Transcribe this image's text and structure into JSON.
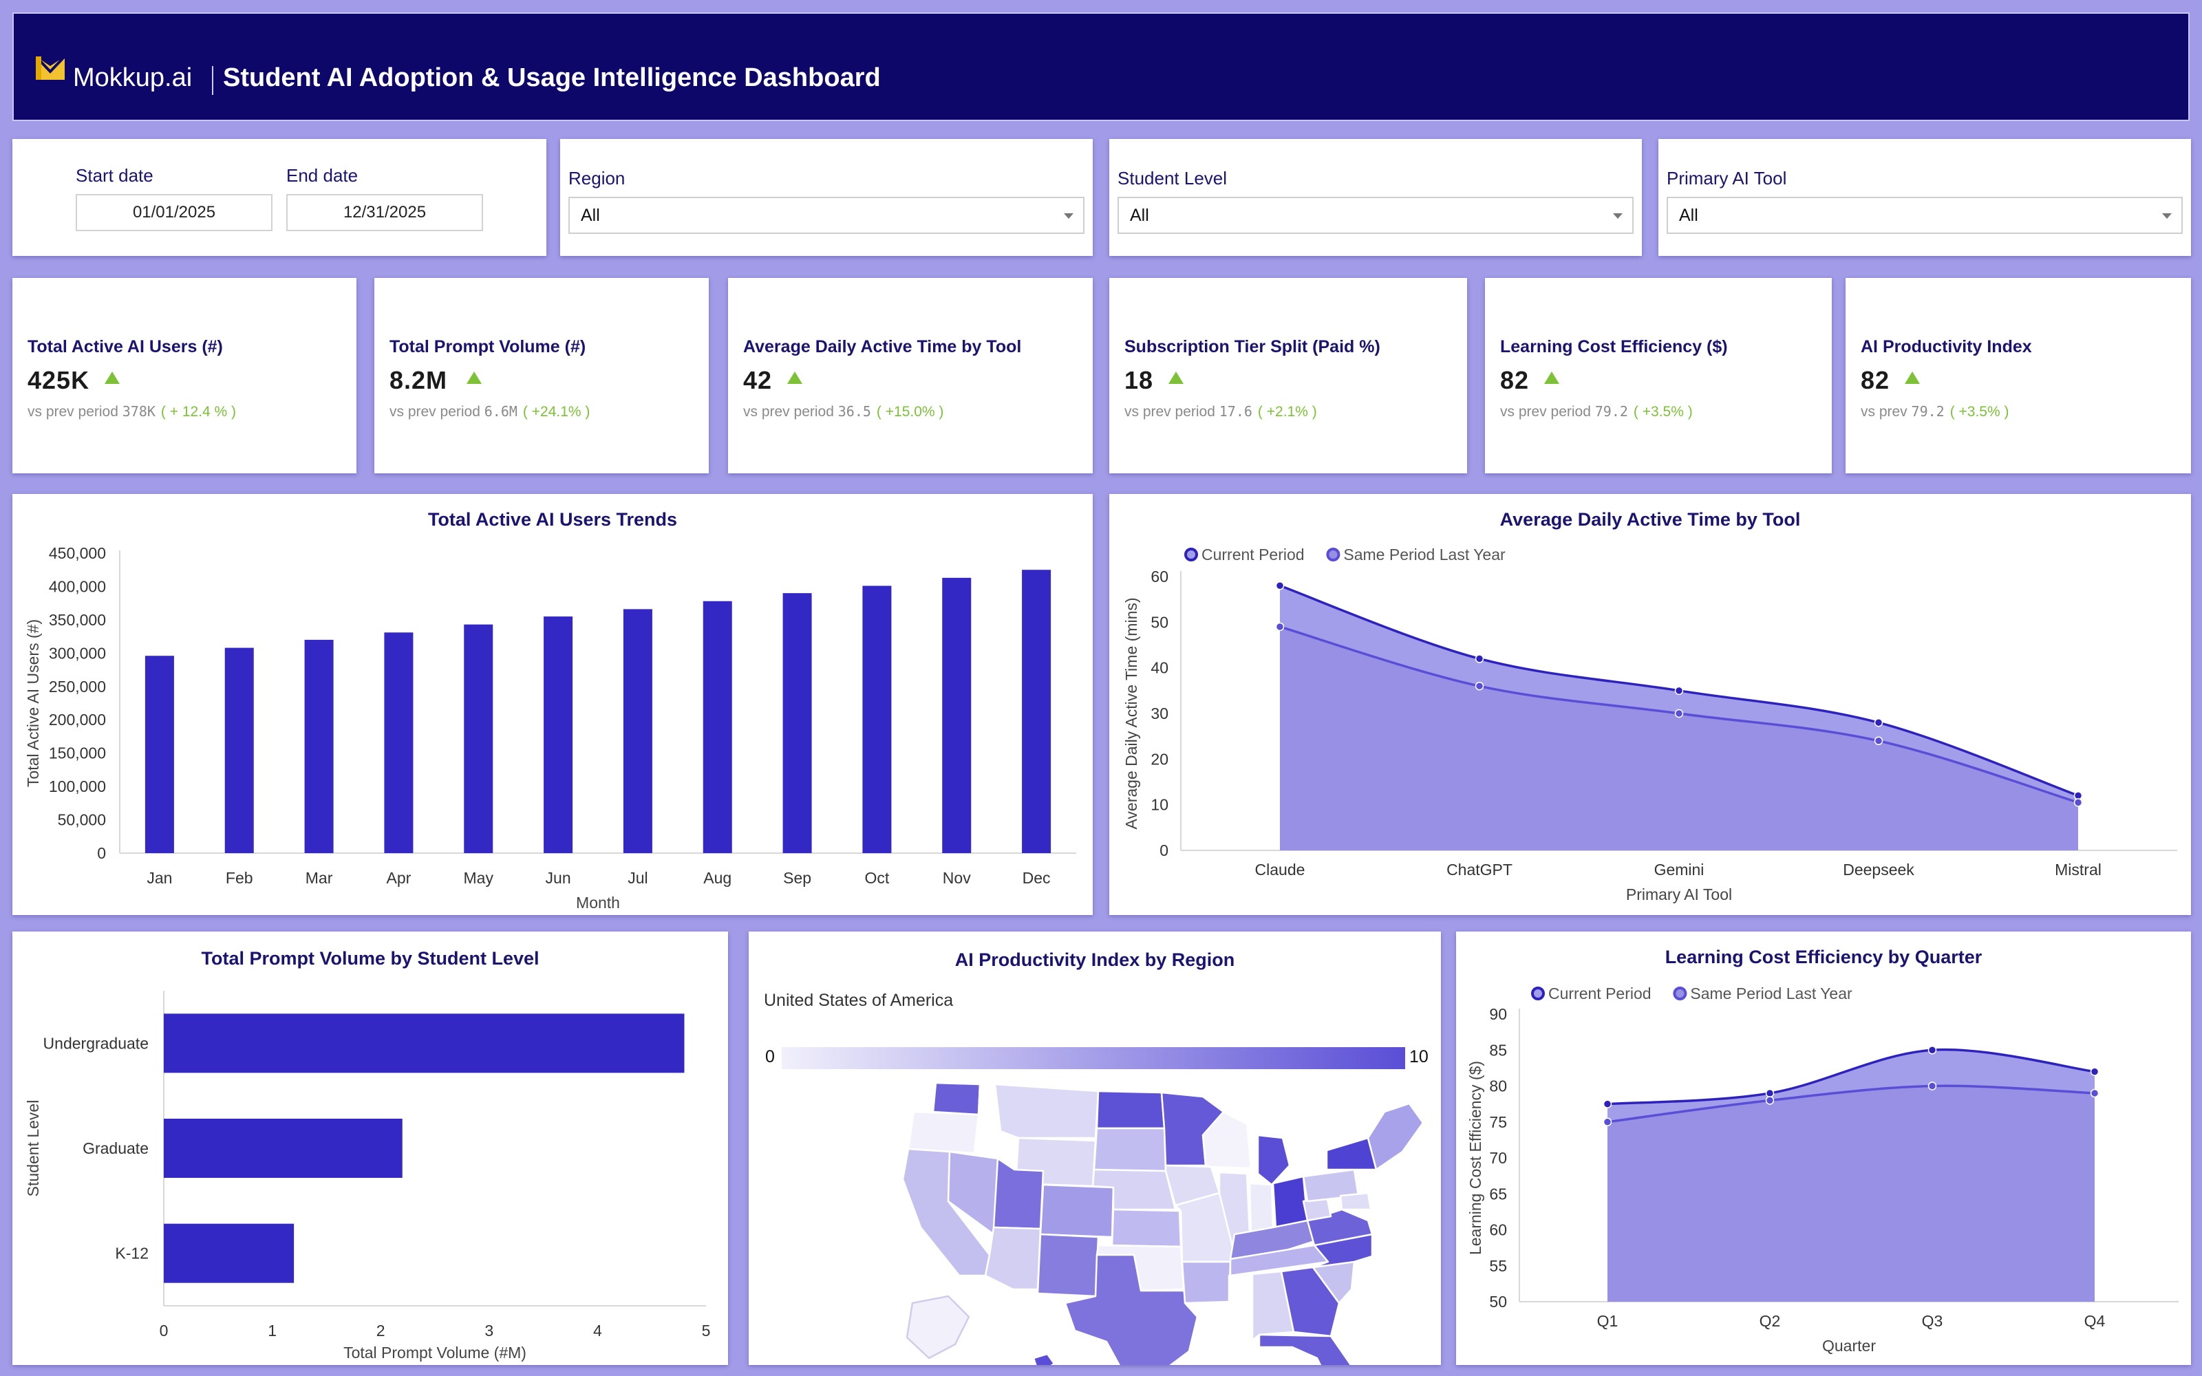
{
  "header": {
    "brand": "Mokkup.ai",
    "title": "Student AI Adoption & Usage Intelligence Dashboard"
  },
  "filters": {
    "start_label": "Start date",
    "start_value": "01/01/2025",
    "end_label": "End date",
    "end_value": "12/31/2025",
    "region_label": "Region",
    "region_value": "All",
    "level_label": "Student Level",
    "level_value": "All",
    "tool_label": "Primary AI Tool",
    "tool_value": "All"
  },
  "kpis": [
    {
      "label": "Total Active AI Users (#)",
      "value": "425K",
      "sub": "vs prev period",
      "prev": "378K",
      "change": "( + 12.4 % )"
    },
    {
      "label": "Total Prompt Volume (#)",
      "value": "8.2M",
      "sub": "vs prev period",
      "prev": "6.6M",
      "change": "( +24.1% )"
    },
    {
      "label": "Average Daily Active Time by Tool",
      "value": "42",
      "sub": "vs prev period",
      "prev": "36.5",
      "change": "( +15.0% )"
    },
    {
      "label": "Subscription Tier Split (Paid %)",
      "value": "18",
      "sub": "vs prev period",
      "prev": "17.6",
      "change": "( +2.1% )"
    },
    {
      "label": "Learning Cost Efficiency ($)",
      "value": "82",
      "sub": "vs prev period",
      "prev": "79.2",
      "change": "( +3.5% )"
    },
    {
      "label": "AI Productivity Index",
      "value": "82",
      "sub": "vs prev",
      "prev": "79.2",
      "change": "( +3.5% )"
    }
  ],
  "colors": {
    "primary": "#3428c4",
    "area_light": "#a39ee9",
    "area_dark": "#9790e4",
    "header_bg": "#0d076a",
    "page_bg": "#a29ce8",
    "up_green": "#7cc136"
  },
  "charts": {
    "users_trend": {
      "title": "Total Active AI Users Trends",
      "type": "bar",
      "xlabel": "Month",
      "ylabel": "Total Active AI Users (#)",
      "categories": [
        "Jan",
        "Feb",
        "Mar",
        "Apr",
        "May",
        "Jun",
        "Jul",
        "Aug",
        "Sep",
        "Oct",
        "Nov",
        "Dec"
      ],
      "values": [
        296000,
        308000,
        320000,
        331000,
        343000,
        355000,
        366000,
        378000,
        390000,
        401000,
        413000,
        425000
      ],
      "ylim": [
        0,
        450000
      ],
      "yticks": [
        "0",
        "50,000",
        "100,000",
        "150,000",
        "200,000",
        "250,000",
        "300,000",
        "350,000",
        "400,000",
        "450,000"
      ]
    },
    "daily_time": {
      "title": "Average Daily Active Time by Tool",
      "type": "area",
      "xlabel": "Primary AI Tool",
      "ylabel": "Average Daily Active Time (mins)",
      "categories": [
        "Claude",
        "ChatGPT",
        "Gemini",
        "Deepseek",
        "Mistral"
      ],
      "series": [
        {
          "name": "Current Period",
          "values": [
            58,
            42,
            35,
            28,
            12
          ]
        },
        {
          "name": "Same Period Last Year",
          "values": [
            49,
            36,
            30,
            24,
            10.5
          ]
        }
      ],
      "ylim": [
        0,
        60
      ],
      "yticks": [
        "0",
        "10",
        "20",
        "30",
        "40",
        "50",
        "60"
      ]
    },
    "prompt_volume": {
      "title": "Total Prompt Volume by Student Level",
      "type": "bar",
      "xlabel": "Total Prompt Volume (#M)",
      "ylabel": "Student Level",
      "categories": [
        "Undergraduate",
        "Graduate",
        "K-12"
      ],
      "values": [
        4.8,
        2.2,
        1.2
      ],
      "xlim": [
        0,
        5
      ],
      "xticks": [
        "0",
        "1",
        "2",
        "3",
        "4",
        "5"
      ]
    },
    "productivity_map": {
      "title": "AI Productivity Index by Region",
      "country": "United States of America",
      "scale_min": "0",
      "scale_max": "10"
    },
    "cost_efficiency": {
      "title": "Learning Cost Efficiency by Quarter",
      "type": "area",
      "xlabel": "Quarter",
      "ylabel": "Learning Cost Efficiency ($)",
      "categories": [
        "Q1",
        "Q2",
        "Q3",
        "Q4"
      ],
      "series": [
        {
          "name": "Current Period",
          "values": [
            77.5,
            79,
            85,
            82
          ]
        },
        {
          "name": "Same Period Last Year",
          "values": [
            75,
            78,
            80,
            79
          ]
        }
      ],
      "ylim": [
        50,
        90
      ],
      "yticks": [
        "50",
        "55",
        "60",
        "65",
        "70",
        "75",
        "80",
        "85",
        "90"
      ]
    }
  },
  "chart_data": [
    {
      "type": "bar",
      "title": "Total Active AI Users Trends",
      "xlabel": "Month",
      "ylabel": "Total Active AI Users (#)",
      "categories": [
        "Jan",
        "Feb",
        "Mar",
        "Apr",
        "May",
        "Jun",
        "Jul",
        "Aug",
        "Sep",
        "Oct",
        "Nov",
        "Dec"
      ],
      "values": [
        296000,
        308000,
        320000,
        331000,
        343000,
        355000,
        366000,
        378000,
        390000,
        401000,
        413000,
        425000
      ],
      "ylim": [
        0,
        450000
      ]
    },
    {
      "type": "area",
      "title": "Average Daily Active Time by Tool",
      "xlabel": "Primary AI Tool",
      "ylabel": "Average Daily Active Time (mins)",
      "categories": [
        "Claude",
        "ChatGPT",
        "Gemini",
        "Deepseek",
        "Mistral"
      ],
      "series": [
        {
          "name": "Current Period",
          "values": [
            58,
            42,
            35,
            28,
            12
          ]
        },
        {
          "name": "Same Period Last Year",
          "values": [
            49,
            36,
            30,
            24,
            10.5
          ]
        }
      ],
      "ylim": [
        0,
        60
      ]
    },
    {
      "type": "bar",
      "title": "Total Prompt Volume by Student Level",
      "xlabel": "Total Prompt Volume (#M)",
      "ylabel": "Student Level",
      "categories": [
        "Undergraduate",
        "Graduate",
        "K-12"
      ],
      "values": [
        4.8,
        2.2,
        1.2
      ],
      "xlim": [
        0,
        5
      ]
    },
    {
      "type": "area",
      "title": "Learning Cost Efficiency by Quarter",
      "xlabel": "Quarter",
      "ylabel": "Learning Cost Efficiency ($)",
      "categories": [
        "Q1",
        "Q2",
        "Q3",
        "Q4"
      ],
      "series": [
        {
          "name": "Current Period",
          "values": [
            77.5,
            79,
            85,
            82
          ]
        },
        {
          "name": "Same Period Last Year",
          "values": [
            75,
            78,
            80,
            79
          ]
        }
      ],
      "ylim": [
        50,
        90
      ]
    }
  ]
}
